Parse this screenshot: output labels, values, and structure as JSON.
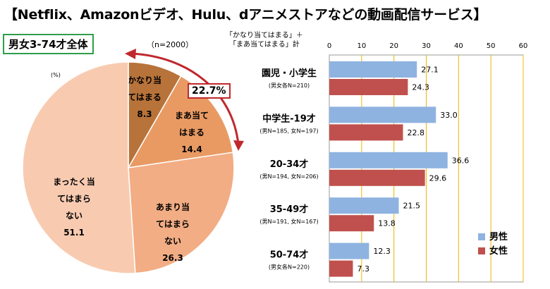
{
  "title": "【Netflix、Amazonビデオ、Hulu、dアニメストアなどの動画配信サービス】",
  "subset_label": "男女3-74才全体",
  "n_note": "（n=2000）",
  "percent_unit": "(%)",
  "callout_value": "22.7%",
  "legend_note_line1": "「かなり当てはまる」＋",
  "legend_note_line2": "「まあ当てはまる」計",
  "colors": {
    "male": "#8fb3e0",
    "female": "#c0504d",
    "accent_green": "#2e9e4a",
    "accent_red": "#c0282d"
  },
  "chart_data": [
    {
      "type": "pie",
      "slices": [
        {
          "lines": [
            "かなり当",
            "てはまる",
            "8.3"
          ],
          "value": 8.3,
          "color": "#b8733a"
        },
        {
          "lines": [
            "まあ当て",
            "はまる",
            "14.4"
          ],
          "value": 14.4,
          "color": "#e99a63"
        },
        {
          "lines": [
            "あまり当",
            "てはまら",
            "ない",
            "26.3"
          ],
          "value": 26.3,
          "color": "#f2ad84"
        },
        {
          "lines": [
            "まったく当",
            "てはまら",
            "ない",
            "51.1"
          ],
          "value": 51.1,
          "color": "#f8cbb1"
        }
      ]
    },
    {
      "type": "bar",
      "orientation": "horizontal",
      "categories": [
        "園児・小学生",
        "中学生-19才",
        "20-34才",
        "35-49才",
        "50-74才"
      ],
      "category_notes": [
        "(男女各N=210)",
        "(男N=185, 女N=197)",
        "(男N=194, 女N=206)",
        "(男N=191, 女N=167)",
        "(男女各N=220)"
      ],
      "series": [
        {
          "name": "男性",
          "values": [
            27.1,
            33.0,
            36.6,
            21.5,
            12.3
          ],
          "labels": [
            "27.1",
            "33.0",
            "36.6",
            "21.5",
            "12.3"
          ],
          "color": "#8fb3e0"
        },
        {
          "name": "女性",
          "values": [
            24.3,
            22.8,
            29.6,
            13.8,
            7.3
          ],
          "labels": [
            "24.3",
            "22.8",
            "29.6",
            "13.8",
            "7.3"
          ],
          "color": "#c0504d"
        }
      ],
      "xlim": [
        0,
        60
      ],
      "ticks": [
        "0",
        "10",
        "20",
        "30",
        "40",
        "50",
        "60"
      ],
      "legend_position": "bottom-right"
    }
  ]
}
